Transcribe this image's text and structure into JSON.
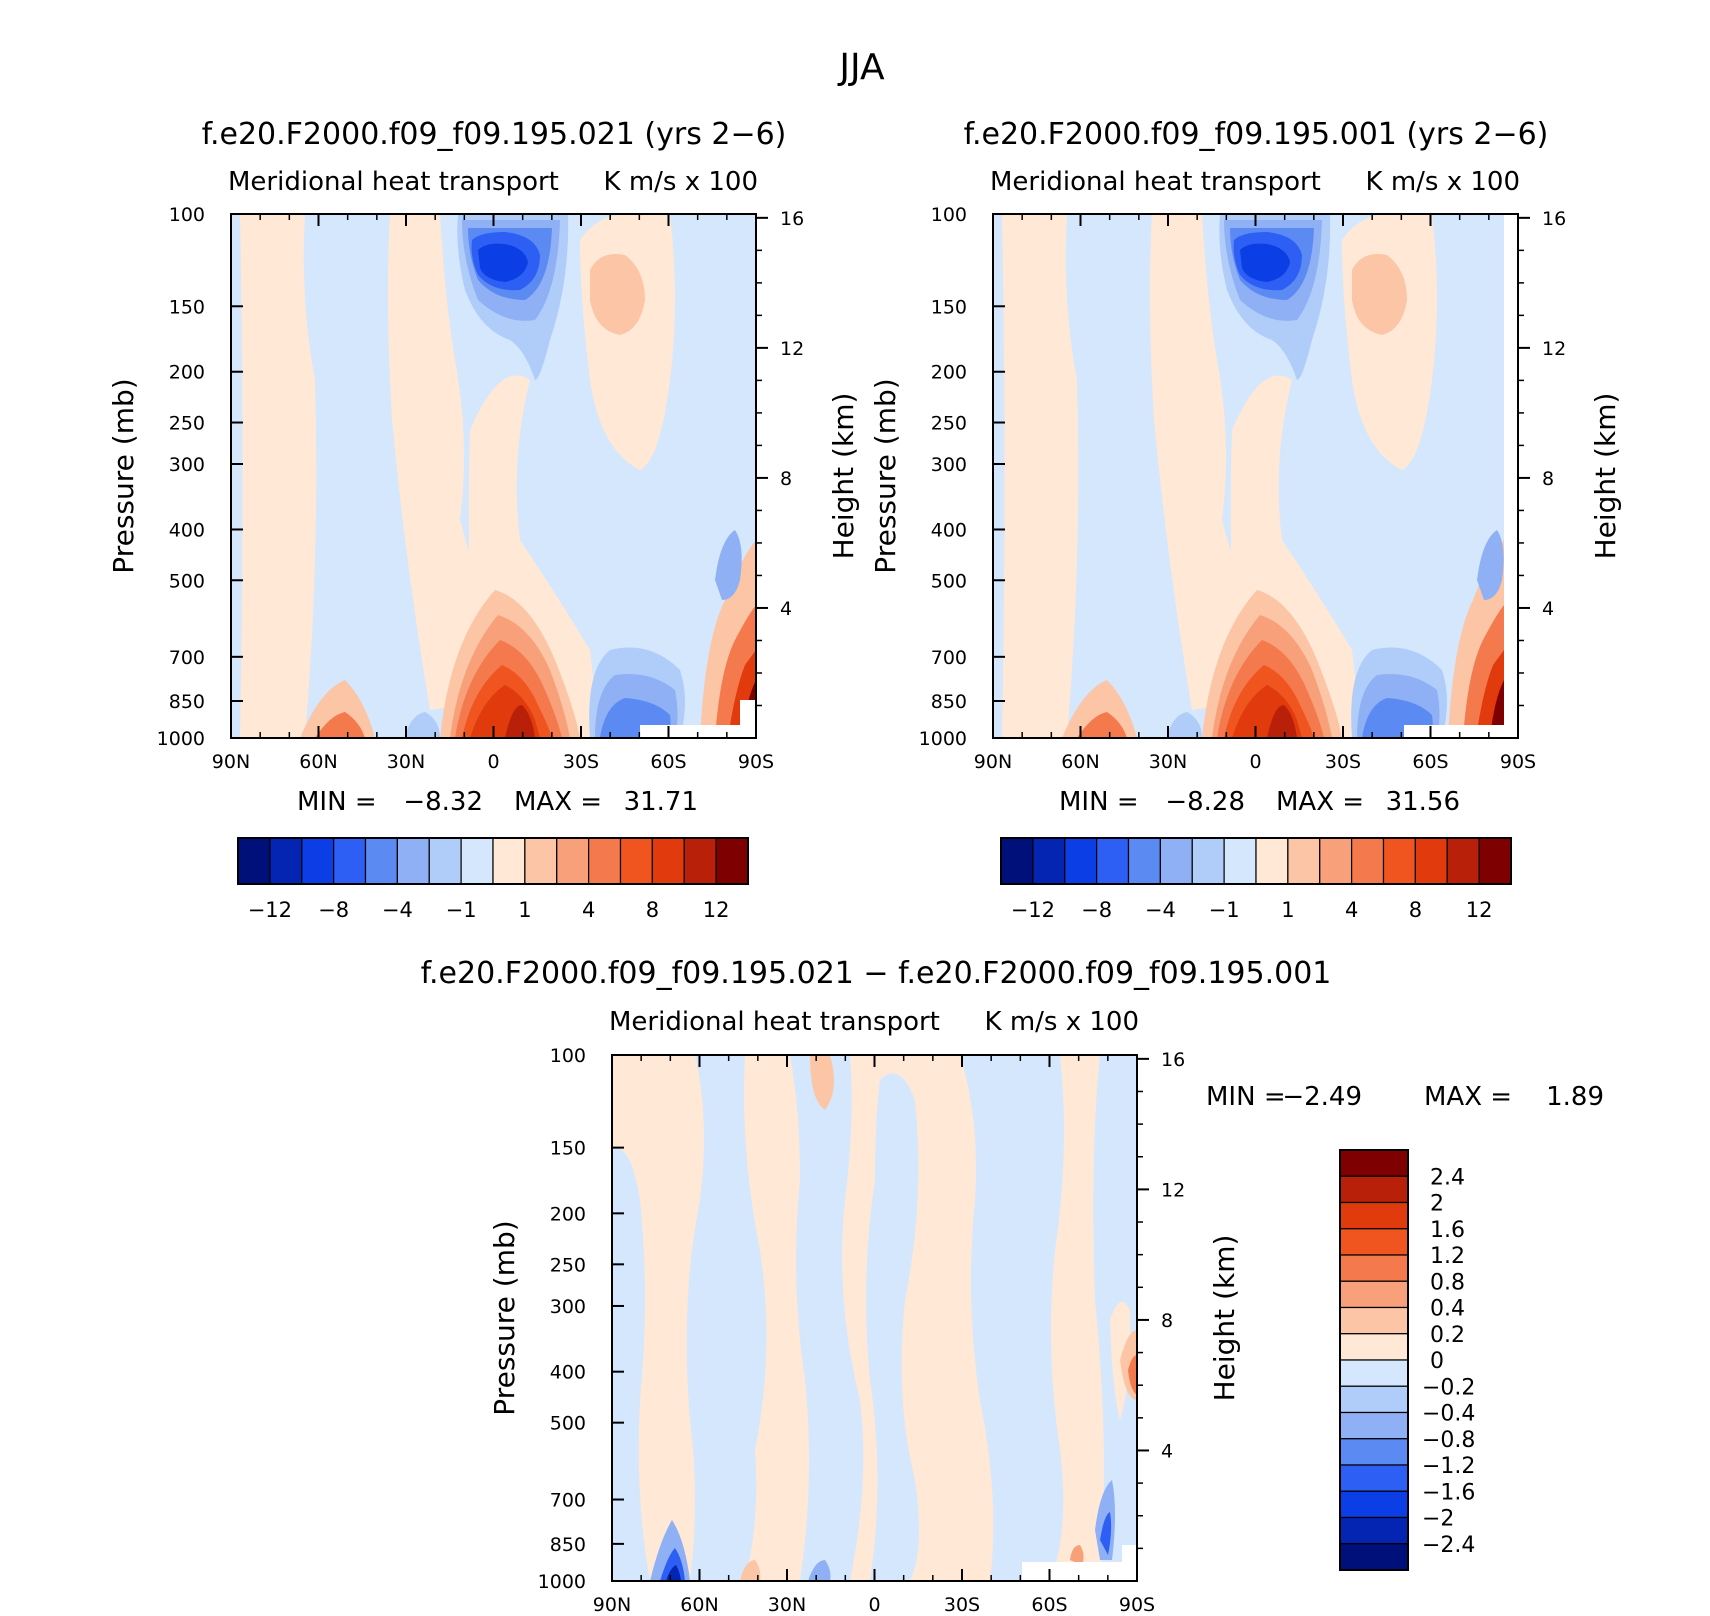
{
  "figure": {
    "season": "JJA",
    "difference_title": "f.e20.F2000.f09_f09.195.021 − f.e20.F2000.f09_f09.195.001"
  },
  "colors": {
    "positive": [
      "#ffe9d6",
      "#fcc6a6",
      "#f8a07a",
      "#f47a4e",
      "#f0541f",
      "#e03a0d",
      "#b92009",
      "#7f0000"
    ],
    "negative": [
      "#d4e7fc",
      "#b0cdfa",
      "#8fb0f4",
      "#5b8bf2",
      "#2e5ff5",
      "#0c3ee6",
      "#0424b2",
      "#00107a"
    ],
    "missing": "#ffffff"
  },
  "chart_data": [
    {
      "type": "heatmap",
      "title": "f.e20.F2000.f09_f09.195.021 (yrs 2−6)",
      "left_string": "Meridional heat transport",
      "right_string": "K m/s x 100",
      "ylabel": "Pressure (mb)",
      "ylabel_right": "Height (km)",
      "xticks": [
        "90N",
        "60N",
        "30N",
        "0",
        "30S",
        "60S",
        "90S"
      ],
      "yticks": [
        100,
        150,
        200,
        250,
        300,
        400,
        500,
        700,
        850,
        1000
      ],
      "yticks_right": [
        16,
        12,
        8,
        4
      ],
      "min_label": "MIN =",
      "min_value": "−8.32",
      "max_label": "MAX =",
      "max_value": "31.71",
      "colorbar_labels": [
        "−12",
        "−8",
        "−4",
        "−1",
        "1",
        "4",
        "8",
        "12"
      ]
    },
    {
      "type": "heatmap",
      "title": "f.e20.F2000.f09_f09.195.001 (yrs 2−6)",
      "left_string": "Meridional heat transport",
      "right_string": "K m/s x 100",
      "ylabel": "Pressure (mb)",
      "ylabel_right": "Height (km)",
      "xticks": [
        "90N",
        "60N",
        "30N",
        "0",
        "30S",
        "60S",
        "90S"
      ],
      "yticks": [
        100,
        150,
        200,
        250,
        300,
        400,
        500,
        700,
        850,
        1000
      ],
      "yticks_right": [
        16,
        12,
        8,
        4
      ],
      "min_label": "MIN =",
      "min_value": "−8.28",
      "max_label": "MAX =",
      "max_value": "31.56",
      "colorbar_labels": [
        "−12",
        "−8",
        "−4",
        "−1",
        "1",
        "4",
        "8",
        "12"
      ]
    },
    {
      "type": "heatmap",
      "left_string": "Meridional heat transport",
      "right_string": "K m/s x 100",
      "ylabel": "Pressure (mb)",
      "ylabel_right": "Height (km)",
      "xticks": [
        "90N",
        "60N",
        "30N",
        "0",
        "30S",
        "60S",
        "90S"
      ],
      "yticks": [
        100,
        150,
        200,
        250,
        300,
        400,
        500,
        700,
        850,
        1000
      ],
      "yticks_right": [
        16,
        12,
        8,
        4
      ],
      "min_label": "MIN =",
      "min_value": "−2.49",
      "max_label": "MAX =",
      "max_value": "1.89",
      "colorbar_labels": [
        "2.4",
        "2",
        "1.6",
        "1.2",
        "0.8",
        "0.4",
        "0.2",
        "0",
        "−0.2",
        "−0.4",
        "−0.8",
        "−1.2",
        "−1.6",
        "−2",
        "−2.4"
      ]
    }
  ]
}
